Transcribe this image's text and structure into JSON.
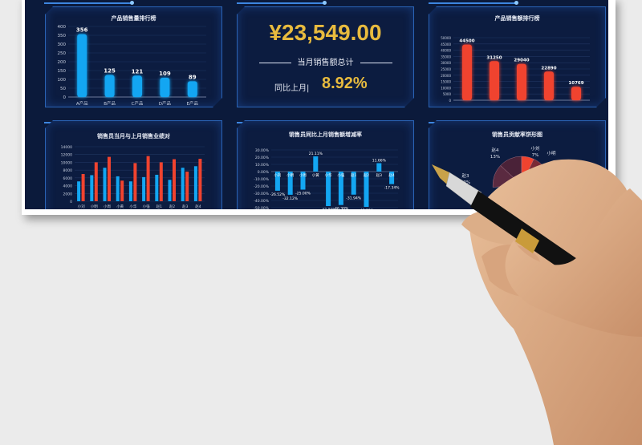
{
  "colors": {
    "background": "#0b1a3b",
    "blue": "#13a6f2",
    "red": "#f0432f",
    "gold": "#e8bb3e"
  },
  "panel1": {
    "title": "产品销售量排行榜",
    "chart_data": {
      "type": "bar",
      "categories": [
        "A产品",
        "B产品",
        "C产品",
        "D产品",
        "E产品"
      ],
      "values": [
        356,
        125,
        121,
        109,
        89
      ],
      "ylim": [
        0,
        400
      ],
      "yticks": [
        0,
        50,
        100,
        150,
        200,
        250,
        300,
        350,
        400
      ]
    }
  },
  "panel2": {
    "amount": "¥23,549.00",
    "amount_label": "当月销售额总计",
    "yoy_label": "同比上月|",
    "yoy_value": "8.92%"
  },
  "panel3": {
    "title": "产品销售额排行榜",
    "chart_data": {
      "type": "bar",
      "categories": [
        "A产品",
        "B产品",
        "C产品",
        "D产品",
        "E产品"
      ],
      "values": [
        44500,
        31250,
        29040,
        22890,
        10769
      ],
      "ylim": [
        0,
        50000
      ],
      "yticks": [
        0,
        5000,
        10000,
        15000,
        20000,
        25000,
        30000,
        35000,
        40000,
        45000,
        50000
      ]
    }
  },
  "panel4": {
    "title": "销售员当月与上月销售业绩对",
    "chart_data": {
      "type": "bar",
      "categories": [
        "小刘",
        "小明",
        "小周",
        "小黄",
        "小华",
        "小强",
        "赵1",
        "赵2",
        "赵3",
        "赵4"
      ],
      "series": [
        {
          "values": [
            5100,
            6700,
            8600,
            6400,
            5100,
            6200,
            6800,
            5500,
            8600,
            9000
          ]
        },
        {
          "values": [
            7000,
            10000,
            11400,
            5300,
            9800,
            11600,
            10000,
            10800,
            7600,
            10900
          ]
        }
      ],
      "ylim": [
        0,
        14000
      ],
      "yticks": [
        0,
        2000,
        4000,
        6000,
        8000,
        10000,
        12000,
        14000
      ]
    }
  },
  "panel5": {
    "title": "销售员同比上月销售额增减率",
    "chart_data": {
      "type": "bar",
      "categories": [
        "小刘",
        "小明",
        "小周",
        "小黄",
        "小华",
        "小强",
        "赵1",
        "赵2",
        "赵3",
        "赵4"
      ],
      "values": [
        -26.52,
        -32.12,
        -25.0,
        21.11,
        -47.8,
        -46.3,
        -31.94,
        -48.9,
        11.66,
        -17.34
      ],
      "labels": [
        "-26.52%",
        "-32.12%",
        "-25.00%",
        "21.11%",
        "-47.80%",
        "-46.30%",
        "-31.94%",
        "-48.90%",
        "11.66%",
        "-17.34%"
      ],
      "ylim": [
        -50,
        30
      ],
      "yticks": [
        "30.00%",
        "20.00%",
        "10.00%",
        "0.00%",
        "-10.00%",
        "-20.00%",
        "-30.00%",
        "-40.00%",
        "-50.00%"
      ]
    }
  },
  "panel6": {
    "title": "销售员贡献率饼形图",
    "chart_data": {
      "type": "pie",
      "slices": [
        {
          "name": "赵4",
          "label": "13%",
          "value": 13
        },
        {
          "name": "赵3",
          "label": "13%",
          "value": 13
        },
        {
          "name": "小刘",
          "label": "7%",
          "value": 7
        },
        {
          "name": "小明",
          "label": "",
          "value": 7
        }
      ]
    }
  }
}
